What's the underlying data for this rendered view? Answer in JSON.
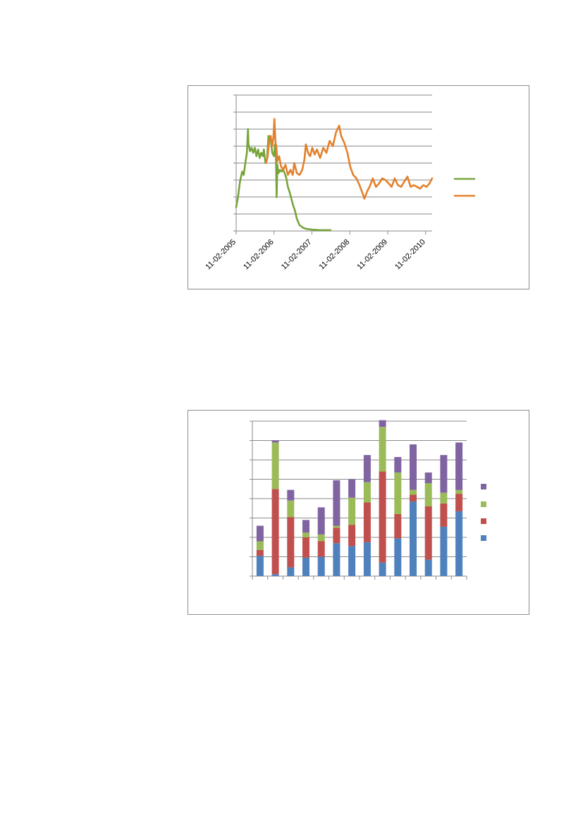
{
  "chart_data": [
    {
      "type": "line",
      "title": "",
      "xlabel": "",
      "ylabel": "",
      "x_tick_labels": [
        "11-02-2005",
        "11-02-2006",
        "11-02-2007",
        "11-02-2008",
        "11-02-2009",
        "11-02-2010"
      ],
      "xlim": [
        "2005-02-11",
        "2010-04-15"
      ],
      "ylim": [
        0,
        8
      ],
      "y_gridlines": 8,
      "grid": true,
      "legend": "right",
      "series": [
        {
          "color": "#77a33b",
          "points": [
            [
              "2005-02-11",
              1.4
            ],
            [
              "2005-03-01",
              2.0
            ],
            [
              "2005-03-20",
              2.9
            ],
            [
              "2005-04-10",
              3.5
            ],
            [
              "2005-04-25",
              3.3
            ],
            [
              "2005-05-10",
              4.0
            ],
            [
              "2005-05-25",
              4.6
            ],
            [
              "2005-06-05",
              6.0
            ],
            [
              "2005-06-10",
              5.1
            ],
            [
              "2005-06-25",
              4.7
            ],
            [
              "2005-07-10",
              4.9
            ],
            [
              "2005-07-25",
              4.6
            ],
            [
              "2005-08-10",
              4.9
            ],
            [
              "2005-08-25",
              4.4
            ],
            [
              "2005-09-10",
              4.8
            ],
            [
              "2005-09-25",
              4.3
            ],
            [
              "2005-10-10",
              4.6
            ],
            [
              "2005-10-25",
              4.4
            ],
            [
              "2005-11-05",
              4.8
            ],
            [
              "2005-11-20",
              4.0
            ],
            [
              "2005-12-05",
              4.2
            ],
            [
              "2005-12-20",
              5.6
            ],
            [
              "2006-01-10",
              5.4
            ],
            [
              "2006-01-25",
              4.6
            ],
            [
              "2006-02-11",
              4.4
            ],
            [
              "2006-02-20",
              5.1
            ],
            [
              "2006-03-01",
              4.5
            ],
            [
              "2006-03-08",
              2.0
            ],
            [
              "2006-03-15",
              3.9
            ],
            [
              "2006-03-25",
              3.4
            ],
            [
              "2006-04-10",
              3.6
            ],
            [
              "2006-04-25",
              3.5
            ],
            [
              "2006-05-10",
              3.6
            ],
            [
              "2006-05-25",
              3.4
            ],
            [
              "2006-06-10",
              3.1
            ],
            [
              "2006-06-25",
              2.6
            ],
            [
              "2006-07-15",
              2.2
            ],
            [
              "2006-08-10",
              1.6
            ],
            [
              "2006-09-01",
              1.2
            ],
            [
              "2006-09-20",
              0.7
            ],
            [
              "2006-10-15",
              0.35
            ],
            [
              "2006-11-15",
              0.2
            ],
            [
              "2006-12-20",
              0.12
            ],
            [
              "2007-02-15",
              0.08
            ],
            [
              "2007-05-01",
              0.05
            ],
            [
              "2007-08-10",
              0.05
            ]
          ]
        },
        {
          "color": "#e3802b",
          "points": [
            [
              "2005-11-25",
              4.0
            ],
            [
              "2005-12-10",
              4.3
            ],
            [
              "2005-12-25",
              5.2
            ],
            [
              "2006-01-10",
              5.6
            ],
            [
              "2006-01-25",
              5.0
            ],
            [
              "2006-02-05",
              5.5
            ],
            [
              "2006-02-15",
              6.6
            ],
            [
              "2006-02-25",
              5.2
            ],
            [
              "2006-03-05",
              5.0
            ],
            [
              "2006-03-15",
              4.1
            ],
            [
              "2006-04-01",
              4.4
            ],
            [
              "2006-04-20",
              3.8
            ],
            [
              "2006-05-10",
              3.6
            ],
            [
              "2006-06-01",
              3.9
            ],
            [
              "2006-06-25",
              3.3
            ],
            [
              "2006-07-20",
              3.6
            ],
            [
              "2006-08-10",
              3.3
            ],
            [
              "2006-08-25",
              4.0
            ],
            [
              "2006-09-20",
              3.4
            ],
            [
              "2006-10-15",
              3.3
            ],
            [
              "2006-11-10",
              3.6
            ],
            [
              "2006-12-01",
              4.2
            ],
            [
              "2006-12-15",
              5.1
            ],
            [
              "2007-01-05",
              4.6
            ],
            [
              "2007-01-25",
              4.4
            ],
            [
              "2007-02-15",
              4.9
            ],
            [
              "2007-03-10",
              4.5
            ],
            [
              "2007-04-01",
              4.8
            ],
            [
              "2007-05-01",
              4.3
            ],
            [
              "2007-06-01",
              4.9
            ],
            [
              "2007-07-01",
              4.6
            ],
            [
              "2007-08-01",
              5.3
            ],
            [
              "2007-09-01",
              5.0
            ],
            [
              "2007-10-01",
              5.8
            ],
            [
              "2007-11-01",
              6.2
            ],
            [
              "2007-11-20",
              5.6
            ],
            [
              "2007-12-20",
              5.2
            ],
            [
              "2008-01-20",
              4.6
            ],
            [
              "2008-02-15",
              3.8
            ],
            [
              "2008-03-15",
              3.3
            ],
            [
              "2008-04-15",
              3.1
            ],
            [
              "2008-05-15",
              2.7
            ],
            [
              "2008-06-15",
              2.2
            ],
            [
              "2008-07-01",
              1.9
            ],
            [
              "2008-08-01",
              2.4
            ],
            [
              "2008-08-20",
              2.6
            ],
            [
              "2008-09-20",
              3.1
            ],
            [
              "2008-10-20",
              2.6
            ],
            [
              "2008-11-20",
              2.8
            ],
            [
              "2008-12-20",
              3.1
            ],
            [
              "2009-01-20",
              3.0
            ],
            [
              "2009-02-20",
              2.8
            ],
            [
              "2009-03-20",
              2.6
            ],
            [
              "2009-04-20",
              3.1
            ],
            [
              "2009-05-20",
              2.7
            ],
            [
              "2009-06-20",
              2.6
            ],
            [
              "2009-07-20",
              2.9
            ],
            [
              "2009-08-20",
              3.2
            ],
            [
              "2009-09-20",
              2.6
            ],
            [
              "2009-10-20",
              2.7
            ],
            [
              "2009-11-20",
              2.6
            ],
            [
              "2009-12-20",
              2.5
            ],
            [
              "2010-01-20",
              2.7
            ],
            [
              "2010-02-20",
              2.6
            ],
            [
              "2010-03-20",
              2.8
            ],
            [
              "2010-04-15",
              3.1
            ]
          ]
        }
      ]
    },
    {
      "type": "bar",
      "stacked": true,
      "title": "",
      "xlabel": "",
      "ylabel": "",
      "ylim": [
        0,
        8
      ],
      "y_gridlines": 8,
      "grid": true,
      "legend": "right",
      "x_tick_count": 14,
      "series": [
        {
          "color": "#4f81bd",
          "values": [
            1.05,
            0.1,
            0.45,
            0.95,
            1.0,
            1.7,
            1.55,
            1.75,
            0.7,
            1.95,
            3.85,
            0.85,
            2.55,
            3.35
          ]
        },
        {
          "color": "#c0504d",
          "values": [
            0.3,
            4.4,
            2.6,
            1.05,
            0.8,
            0.8,
            1.1,
            2.05,
            4.7,
            1.25,
            0.35,
            2.75,
            1.2,
            0.9
          ]
        },
        {
          "color": "#9bbb59",
          "values": [
            0.45,
            2.4,
            0.85,
            0.25,
            0.35,
            0.1,
            1.4,
            1.05,
            2.3,
            2.15,
            0.25,
            1.2,
            0.55,
            0.2
          ]
        },
        {
          "color": "#8064a2",
          "values": [
            0.8,
            0.1,
            0.55,
            0.65,
            1.4,
            2.35,
            0.95,
            1.4,
            0.35,
            0.8,
            2.35,
            0.55,
            1.95,
            2.45
          ]
        }
      ]
    }
  ]
}
